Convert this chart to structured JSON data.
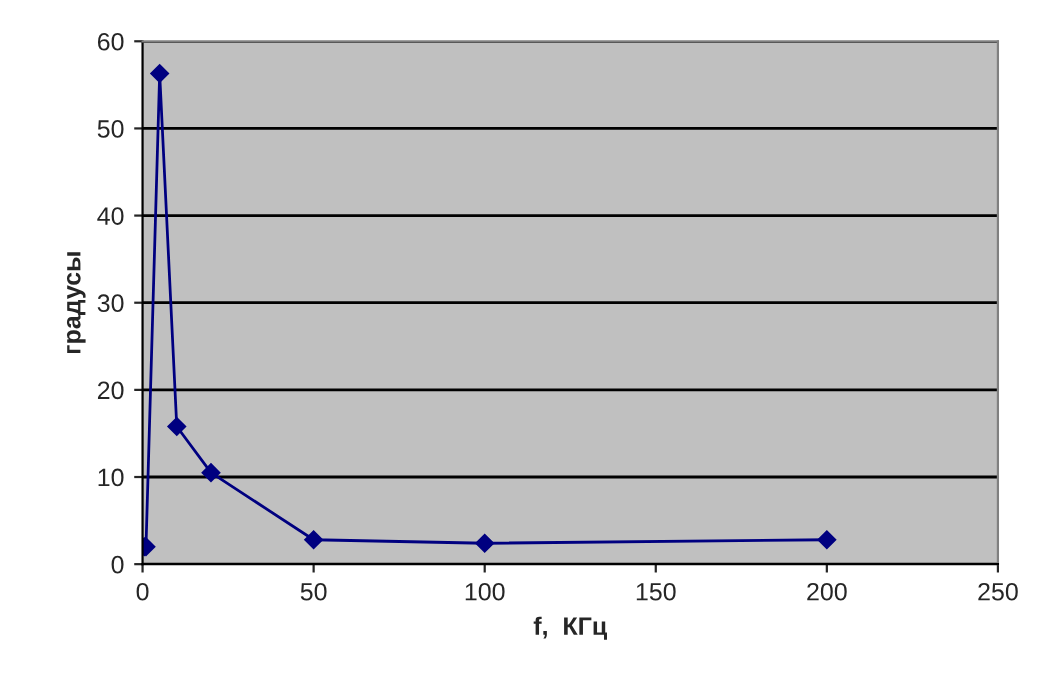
{
  "chart_data": {
    "type": "line",
    "xlabel": "f,  КГц",
    "ylabel": "градусы",
    "series": [
      {
        "color": "#000080",
        "x": [
          0.5,
          1,
          5,
          10,
          20,
          50,
          100,
          200
        ],
        "values": [
          2,
          2,
          56.3,
          15.8,
          10.5,
          2.8,
          2.4,
          2.8
        ]
      }
    ],
    "xlim": [
      0,
      250
    ],
    "xticks": [
      0,
      50,
      100,
      150,
      200,
      250
    ],
    "ylim": [
      0,
      60
    ],
    "yticks": [
      0,
      10,
      20,
      30,
      40,
      50,
      60
    ],
    "grid": "y",
    "marker": "diamond",
    "line_style": "solid",
    "legend": false
  }
}
